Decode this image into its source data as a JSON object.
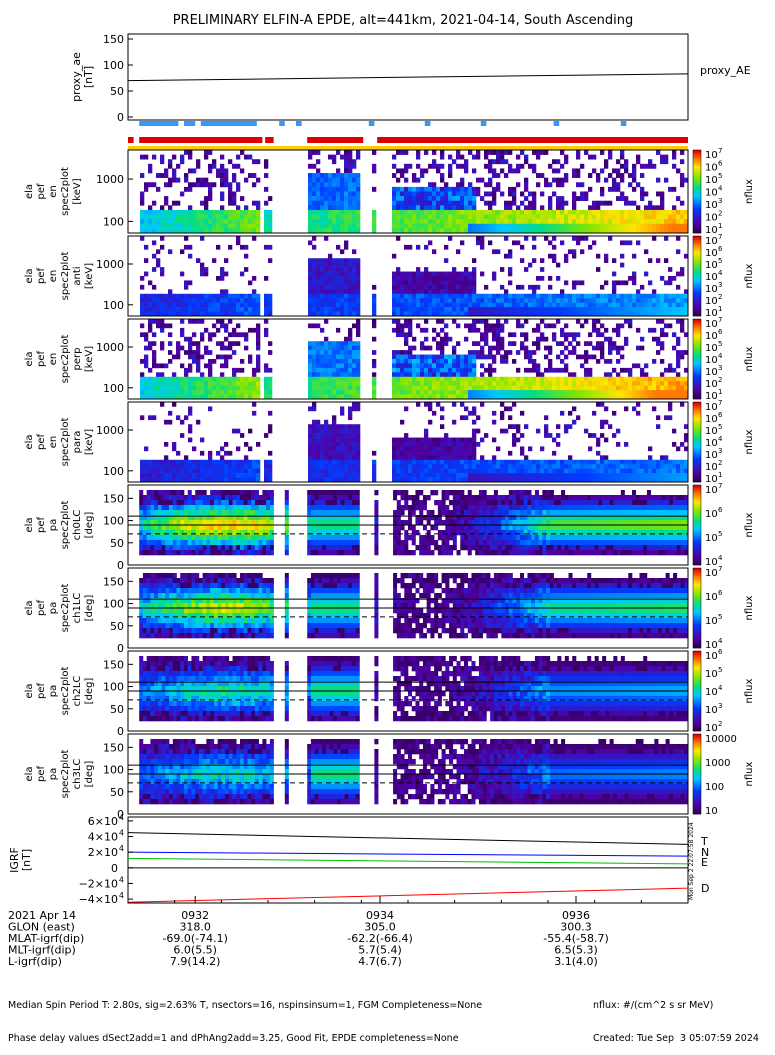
{
  "title": "PRELIMINARY ELFIN-A EPDE, alt=441km, 2021-04-14, South Ascending",
  "panels": [
    {
      "key": "proxy",
      "ylabel": [
        "proxy_ae",
        "[nT]"
      ],
      "ticks": [
        "150",
        "100",
        "50",
        "0"
      ],
      "legend": "proxy_AE"
    },
    {
      "key": "spec_en_1",
      "ylabel": [
        "ela",
        "pef",
        "en",
        "spec2plot",
        "[keV]"
      ],
      "ticks": [
        "1000",
        "100"
      ],
      "cbticks": [
        "10",
        "10",
        "10",
        "10",
        "10",
        "10",
        "10"
      ],
      "cbexp": [
        "7",
        "6",
        "5",
        "4",
        "3",
        "2",
        "1"
      ],
      "cblabel": "nflux"
    },
    {
      "key": "spec_en_2",
      "ylabel": [
        "ela",
        "pef",
        "en",
        "spec2plot",
        "anti",
        "[keV]"
      ],
      "ticks": [
        "1000",
        "100"
      ],
      "cbticks": [
        "10",
        "10",
        "10",
        "10",
        "10",
        "10",
        "10"
      ],
      "cbexp": [
        "7",
        "6",
        "5",
        "4",
        "3",
        "2",
        "1"
      ],
      "cblabel": "nflux"
    },
    {
      "key": "spec_en_3",
      "ylabel": [
        "ela",
        "pef",
        "en",
        "spec2plot",
        "perp",
        "[keV]"
      ],
      "ticks": [
        "1000",
        "100"
      ],
      "cbticks": [
        "10",
        "10",
        "10",
        "10",
        "10",
        "10",
        "10"
      ],
      "cbexp": [
        "7",
        "6",
        "5",
        "4",
        "3",
        "2",
        "1"
      ],
      "cblabel": "nflux"
    },
    {
      "key": "spec_en_4",
      "ylabel": [
        "ela",
        "pef",
        "en",
        "spec2plot",
        "para",
        "[keV]"
      ],
      "ticks": [
        "1000",
        "100"
      ],
      "cbticks": [
        "10",
        "10",
        "10",
        "10",
        "10",
        "10",
        "10"
      ],
      "cbexp": [
        "7",
        "6",
        "5",
        "4",
        "3",
        "2",
        "1"
      ],
      "cblabel": "nflux"
    },
    {
      "key": "pa_ch0",
      "ylabel": [
        "ela",
        "pef",
        "pa",
        "spec2plot",
        "ch0LC",
        "[deg]"
      ],
      "ticks": [
        "150",
        "100",
        "50",
        "0"
      ],
      "cbticks": [
        "10",
        "10",
        "10",
        "10"
      ],
      "cbexp": [
        "7",
        "6",
        "5",
        "4"
      ],
      "cblabel": "nflux"
    },
    {
      "key": "pa_ch1",
      "ylabel": [
        "ela",
        "pef",
        "pa",
        "spec2plot",
        "ch1LC",
        "[deg]"
      ],
      "ticks": [
        "150",
        "100",
        "50",
        "0"
      ],
      "cbticks": [
        "10",
        "10",
        "10",
        "10"
      ],
      "cbexp": [
        "7",
        "6",
        "5",
        "4"
      ],
      "cblabel": "nflux"
    },
    {
      "key": "pa_ch2",
      "ylabel": [
        "ela",
        "pef",
        "pa",
        "spec2plot",
        "ch2LC",
        "[deg]"
      ],
      "ticks": [
        "150",
        "100",
        "50",
        "0"
      ],
      "cbticks": [
        "10",
        "10",
        "10",
        "10",
        "10"
      ],
      "cbexp": [
        "6",
        "5",
        "4",
        "3",
        "2"
      ],
      "cblabel": "nflux"
    },
    {
      "key": "pa_ch3",
      "ylabel": [
        "ela",
        "pef",
        "pa",
        "spec2plot",
        "ch3LC",
        "[deg]"
      ],
      "ticks": [
        "150",
        "100",
        "50",
        "0"
      ],
      "cbticks": [
        "10000",
        "1000",
        "100",
        "10"
      ],
      "cbexp": [
        "",
        "",
        "",
        ""
      ],
      "cblabel": "nflux"
    },
    {
      "key": "igrf",
      "ylabel": [
        "IGRF",
        "[nT]"
      ],
      "ticks": [
        "6×10",
        "4×10",
        "2×10",
        "0",
        "−2×10",
        "−4×10"
      ],
      "tickexp": [
        "4",
        "4",
        "4",
        "",
        "4",
        "4"
      ],
      "legend_labels": [
        "T",
        "N",
        "E",
        "D"
      ],
      "legend_colors": [
        "#000000",
        "#0000ff",
        "#00c000",
        "#ff0000"
      ]
    }
  ],
  "time_axis": {
    "ticks": [
      "0932",
      "0934",
      "0936"
    ],
    "rows": [
      {
        "label": "2021 Apr 14",
        "values": [
          "0932",
          "0934",
          "0936"
        ]
      },
      {
        "label": "GLON (east)",
        "values": [
          "318.0",
          "305.0",
          "300.3"
        ]
      },
      {
        "label": "MLAT-igrf(dip)",
        "values": [
          "-69.0(-74.1)",
          "-62.2(-66.4)",
          "-55.4(-58.7)"
        ]
      },
      {
        "label": "MLT-igrf(dip)",
        "values": [
          "6.0(5.5)",
          "5.7(5.4)",
          "6.5(5.3)"
        ]
      },
      {
        "label": "L-igrf(dip)",
        "values": [
          "7.9(14.2)",
          "4.7(6.7)",
          "3.1(4.0)"
        ]
      }
    ]
  },
  "footer": {
    "left1": "Median Spin Period T: 2.80s, sig=2.63% T, nsectors=16, nspinsinsum=1, FGM Completeness=None",
    "left2": "Phase delay values dSect2add=1 and dPhAng2add=3.25, Good Fit, EPDE completeness=None",
    "right1": "nflux: #/(cm^2 s sr MeV)",
    "right2": "Created: Tue Sep  3 05:07:59 2024",
    "side": "Mon Sep 2 22:07:58 2024"
  },
  "chart_data": {
    "type": "heatmap",
    "title": "PRELIMINARY ELFIN-A EPDE, alt=441km, 2021-04-14, South Ascending",
    "x_ticks": [
      "0932",
      "0934",
      "0936"
    ],
    "proxy_ae": {
      "ylim": [
        0,
        150
      ],
      "x_frac": [
        0,
        1
      ],
      "values": [
        70,
        83
      ]
    },
    "energy_ylim_keV": [
      60,
      7000
    ],
    "pa_ylim_deg": [
      0,
      180
    ],
    "pa_ref_lines_deg": [
      90,
      110,
      70
    ],
    "igrf": {
      "ylim": [
        -45000,
        65000
      ],
      "series": [
        {
          "name": "T",
          "values": [
            45000,
            30000
          ],
          "color": "#000000"
        },
        {
          "name": "N",
          "values": [
            20000,
            15000
          ],
          "color": "#0000ff"
        },
        {
          "name": "E",
          "values": [
            12000,
            5000
          ],
          "color": "#00c000"
        },
        {
          "name": "D",
          "values": [
            -44000,
            -26000
          ],
          "color": "#ff0000"
        }
      ]
    },
    "science_zones_red": [
      [
        0.0,
        0.01
      ],
      [
        0.02,
        0.24
      ],
      [
        0.245,
        0.26
      ],
      [
        0.32,
        0.42
      ],
      [
        0.445,
        1.0
      ]
    ],
    "data_coverage": [
      [
        0.015,
        0.235
      ],
      [
        0.24,
        0.255
      ],
      [
        0.28,
        0.285
      ],
      [
        0.32,
        0.41
      ],
      [
        0.435,
        0.44
      ],
      [
        0.47,
        1.0
      ]
    ]
  }
}
